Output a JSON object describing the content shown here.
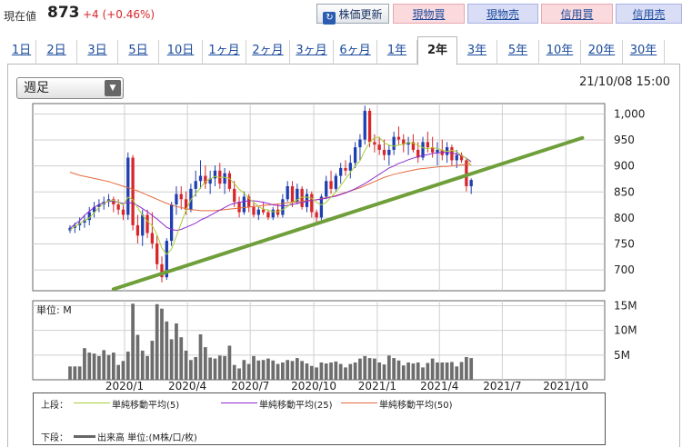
{
  "header": {
    "current_label": "現在値",
    "current_price": "873",
    "change": "+4 (+0.46%)",
    "update_button": "株価更新",
    "buy_button": "現物買",
    "sell_button": "現物売",
    "margin_buy_button": "信用買",
    "margin_sell_button": "信用売"
  },
  "tabs": [
    "1日",
    "2日",
    "3日",
    "5日",
    "10日",
    "1ヶ月",
    "2ヶ月",
    "3ヶ月",
    "6ヶ月",
    "1年",
    "2年",
    "3年",
    "5年",
    "10年",
    "20年",
    "30年"
  ],
  "active_tab": "2年",
  "period_select": "週足",
  "timestamp": "21/10/08 15:00",
  "legend": {
    "upper_label": "上段：",
    "lower_label": "下段：",
    "ma5": "単純移動平均(5)",
    "ma25": "単純移動平均(25)",
    "ma50": "単純移動平均(50)",
    "volume": "出来高 単位:(M株/口/枚)"
  },
  "colors": {
    "up": "#1f3fb0",
    "down": "#d9262b",
    "ma5": "#a9cf38",
    "ma25": "#8e2bd0",
    "ma50": "#e36a3c",
    "trend": "#6f9f3a",
    "volume": "#6d6d6d",
    "price_change": "#d9262b"
  },
  "chart_data": [
    {
      "type": "candlestick",
      "x_axis_labels": [
        "2020/1",
        "2020/4",
        "2020/7",
        "2020/10",
        "2021/1",
        "2021/4",
        "2021/7",
        "2021/10"
      ],
      "y_ticks": [
        "700",
        "750",
        "800",
        "850",
        "900",
        "950",
        "1,000"
      ],
      "ylim": [
        660,
        1020
      ],
      "start_week": "2019/10/14",
      "candles": [
        [
          776,
          786,
          771,
          781
        ],
        [
          781,
          791,
          771,
          786
        ],
        [
          786,
          801,
          776,
          791
        ],
        [
          791,
          806,
          781,
          796
        ],
        [
          796,
          821,
          786,
          811
        ],
        [
          811,
          831,
          801,
          821
        ],
        [
          821,
          836,
          811,
          826
        ],
        [
          826,
          841,
          816,
          831
        ],
        [
          831,
          846,
          821,
          836
        ],
        [
          836,
          841,
          811,
          826
        ],
        [
          826,
          836,
          806,
          816
        ],
        [
          816,
          826,
          796,
          806
        ],
        [
          806,
          926,
          796,
          916
        ],
        [
          916,
          921,
          776,
          786
        ],
        [
          786,
          806,
          751,
          766
        ],
        [
          766,
          816,
          746,
          806
        ],
        [
          806,
          816,
          761,
          771
        ],
        [
          771,
          811,
          741,
          751
        ],
        [
          751,
          766,
          701,
          711
        ],
        [
          711,
          726,
          676,
          686
        ],
        [
          686,
          761,
          681,
          756
        ],
        [
          756,
          831,
          746,
          826
        ],
        [
          826,
          861,
          806,
          846
        ],
        [
          846,
          861,
          816,
          836
        ],
        [
          836,
          851,
          806,
          816
        ],
        [
          816,
          866,
          811,
          856
        ],
        [
          856,
          891,
          841,
          871
        ],
        [
          871,
          911,
          856,
          881
        ],
        [
          881,
          901,
          856,
          866
        ],
        [
          866,
          891,
          846,
          876
        ],
        [
          876,
          901,
          861,
          891
        ],
        [
          891,
          906,
          856,
          866
        ],
        [
          866,
          896,
          846,
          886
        ],
        [
          886,
          891,
          851,
          856
        ],
        [
          856,
          871,
          821,
          831
        ],
        [
          831,
          841,
          801,
          811
        ],
        [
          811,
          851,
          806,
          841
        ],
        [
          841,
          846,
          811,
          821
        ],
        [
          821,
          831,
          801,
          806
        ],
        [
          806,
          821,
          796,
          816
        ],
        [
          816,
          831,
          806,
          811
        ],
        [
          811,
          816,
          796,
          801
        ],
        [
          801,
          821,
          796,
          816
        ],
        [
          816,
          826,
          801,
          806
        ],
        [
          806,
          846,
          801,
          836
        ],
        [
          836,
          871,
          831,
          861
        ],
        [
          861,
          871,
          821,
          831
        ],
        [
          831,
          866,
          826,
          856
        ],
        [
          856,
          861,
          816,
          821
        ],
        [
          821,
          856,
          811,
          846
        ],
        [
          846,
          851,
          801,
          811
        ],
        [
          811,
          816,
          791,
          801
        ],
        [
          801,
          846,
          796,
          841
        ],
        [
          841,
          881,
          836,
          871
        ],
        [
          871,
          891,
          846,
          856
        ],
        [
          856,
          886,
          851,
          881
        ],
        [
          881,
          906,
          866,
          896
        ],
        [
          896,
          911,
          881,
          891
        ],
        [
          891,
          921,
          876,
          906
        ],
        [
          906,
          946,
          896,
          936
        ],
        [
          936,
          961,
          911,
          951
        ],
        [
          951,
          1016,
          941,
          1006
        ],
        [
          1006,
          1011,
          936,
          946
        ],
        [
          946,
          961,
          926,
          941
        ],
        [
          941,
          956,
          921,
          931
        ],
        [
          931,
          951,
          911,
          921
        ],
        [
          921,
          941,
          901,
          931
        ],
        [
          931,
          966,
          921,
          956
        ],
        [
          956,
          976,
          941,
          951
        ],
        [
          951,
          961,
          926,
          941
        ],
        [
          941,
          956,
          921,
          946
        ],
        [
          946,
          961,
          926,
          931
        ],
        [
          931,
          946,
          906,
          916
        ],
        [
          916,
          956,
          911,
          946
        ],
        [
          946,
          966,
          926,
          936
        ],
        [
          936,
          956,
          916,
          926
        ],
        [
          926,
          946,
          901,
          931
        ],
        [
          931,
          951,
          911,
          921
        ],
        [
          921,
          946,
          906,
          936
        ],
        [
          936,
          941,
          901,
          911
        ],
        [
          911,
          931,
          896,
          921
        ],
        [
          921,
          926,
          906,
          911
        ],
        [
          911,
          916,
          851,
          861
        ],
        [
          861,
          876,
          846,
          873
        ]
      ],
      "ma5": [
        777,
        784,
        789,
        795,
        800,
        810,
        820,
        828,
        833,
        834,
        830,
        825,
        840,
        835,
        820,
        805,
        794,
        785,
        768,
        742,
        730,
        740,
        765,
        790,
        815,
        835,
        847,
        858,
        870,
        875,
        880,
        878,
        878,
        876,
        866,
        855,
        848,
        838,
        830,
        822,
        817,
        815,
        812,
        812,
        816,
        822,
        830,
        835,
        840,
        840,
        838,
        830,
        825,
        830,
        840,
        850,
        862,
        875,
        888,
        900,
        910,
        930,
        945,
        955,
        955,
        945,
        940,
        938,
        940,
        942,
        945,
        944,
        940,
        935,
        933,
        935,
        934,
        930,
        928,
        930,
        928,
        920,
        915,
        900
      ],
      "ma25": [
        780,
        788,
        795,
        805,
        813,
        820,
        826,
        830,
        832,
        832,
        830,
        828,
        830,
        828,
        824,
        818,
        812,
        805,
        798,
        790,
        782,
        778,
        776,
        778,
        782,
        786,
        790,
        796,
        800,
        805,
        810,
        815,
        820,
        825,
        828,
        830,
        832,
        833,
        833,
        832,
        830,
        828,
        825,
        824,
        823,
        824,
        826,
        828,
        830,
        832,
        834,
        835,
        836,
        838,
        840,
        842,
        845,
        848,
        852,
        856,
        861,
        866,
        872,
        878,
        884,
        890,
        896,
        900,
        905,
        908,
        912,
        915,
        918,
        920,
        922,
        924,
        925,
        926,
        926,
        925,
        923,
        920,
        915,
        908
      ],
      "ma50": [
        888,
        885,
        882,
        880,
        878,
        876,
        874,
        872,
        870,
        867,
        864,
        861,
        858,
        855,
        852,
        848,
        844,
        840,
        836,
        832,
        828,
        825,
        822,
        820,
        818,
        816,
        815,
        814,
        814,
        814,
        814,
        815,
        816,
        817,
        818,
        819,
        820,
        821,
        822,
        823,
        824,
        825,
        826,
        827,
        828,
        829,
        830,
        831,
        832,
        833,
        834,
        835,
        837,
        839,
        841,
        843,
        846,
        849,
        852,
        855,
        858,
        862,
        866,
        870,
        874,
        878,
        881,
        884,
        886,
        888,
        890,
        892,
        894,
        895,
        896,
        897,
        898,
        899,
        899,
        900,
        901,
        902,
        903,
        903
      ],
      "trendline": [
        [
          "2019/12/16",
          663
        ],
        [
          "2021/10/25",
          954
        ]
      ]
    },
    {
      "type": "bar",
      "title": "単位: M",
      "y_ticks": [
        "5M",
        "10M",
        "15M"
      ],
      "ylim": [
        0,
        16
      ],
      "volume": [
        2.7,
        2.7,
        2.7,
        6.4,
        5.5,
        5.3,
        4.8,
        6.0,
        5.0,
        5.5,
        3.0,
        3.8,
        5.7,
        15.4,
        9.1,
        5.9,
        4.8,
        7.9,
        15.3,
        14.4,
        11.8,
        8.2,
        11.4,
        8.6,
        5.9,
        4.0,
        4.6,
        9.2,
        6.6,
        4.5,
        4.3,
        4.9,
        4.8,
        6.9,
        3.0,
        2.3,
        4.0,
        3.2,
        4.8,
        3.9,
        4.0,
        4.3,
        3.9,
        3.2,
        3.5,
        4.0,
        3.8,
        4.4,
        3.8,
        3.3,
        2.8,
        2.5,
        3.5,
        3.3,
        3.5,
        3.7,
        3.2,
        2.5,
        3.2,
        3.5,
        4.3,
        4.8,
        4.4,
        4.3,
        3.5,
        3.1,
        4.9,
        4.4,
        3.9,
        2.9,
        3.5,
        3.3,
        3.5,
        2.5,
        3.4,
        4.3,
        3.5,
        3.5,
        3.5,
        3.6,
        2.7,
        3.6,
        4.6,
        4.4
      ]
    }
  ]
}
